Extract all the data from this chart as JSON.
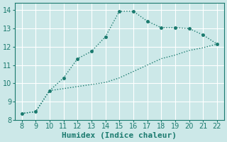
{
  "xlabel": "Humidex (Indice chaleur)",
  "background_color": "#cce8e8",
  "line_color": "#1a7a6e",
  "grid_color": "#ffffff",
  "xlim": [
    7.5,
    22.5
  ],
  "ylim": [
    8.0,
    14.4
  ],
  "xticks": [
    8,
    9,
    10,
    11,
    12,
    13,
    14,
    15,
    16,
    17,
    18,
    19,
    20,
    21,
    22
  ],
  "yticks": [
    8,
    9,
    10,
    11,
    12,
    13,
    14
  ],
  "upper_x": [
    8,
    9,
    10,
    11,
    12,
    13,
    14,
    15,
    16,
    17,
    18,
    19,
    20,
    21,
    22
  ],
  "upper_y": [
    8.35,
    8.45,
    9.6,
    10.3,
    11.35,
    11.75,
    12.55,
    13.95,
    13.95,
    13.4,
    13.05,
    13.05,
    13.0,
    12.65,
    12.15
  ],
  "lower_x": [
    8,
    9,
    10,
    14,
    15,
    16,
    17,
    18,
    19,
    20,
    21,
    22
  ],
  "lower_y": [
    8.35,
    8.45,
    9.6,
    10.05,
    10.3,
    10.65,
    11.0,
    11.35,
    11.55,
    11.8,
    11.95,
    12.15
  ],
  "font_size": 8,
  "marker_size": 3,
  "line_width": 1.0,
  "tick_font_size": 7
}
